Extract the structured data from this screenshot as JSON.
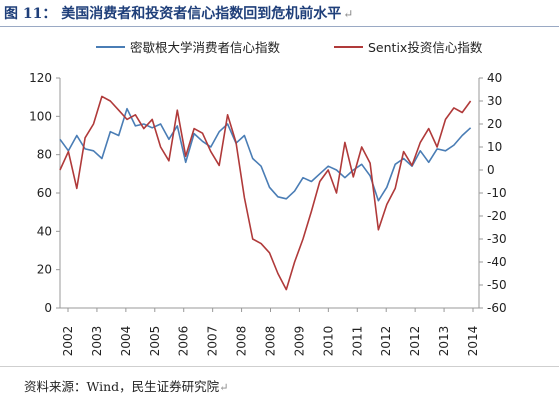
{
  "header": {
    "title": "图 11：  美国消费者和投资者信心指数回到危机前水平",
    "mark": "↵"
  },
  "footer": {
    "source": "资料来源：Wind，民生证券研究院",
    "mark": "↵"
  },
  "chart_data": {
    "type": "line",
    "title": "",
    "xlabel": "",
    "ylabel": "",
    "y2label": "",
    "ylim": [
      0,
      120
    ],
    "y2lim": [
      -60,
      40
    ],
    "yticks": [
      "0",
      "20",
      "40",
      "60",
      "80",
      "100",
      "120"
    ],
    "y2ticks": [
      "-60",
      "-50",
      "-40",
      "-30",
      "-20",
      "-10",
      "0",
      "10",
      "20",
      "30",
      "40"
    ],
    "x_ticks": [
      "2002",
      "2003",
      "2004",
      "2005",
      "2006",
      "2007",
      "2008",
      "2008",
      "2009",
      "2010",
      "2011",
      "2012",
      "2012",
      "2013",
      "2014"
    ],
    "legend_position": "top",
    "grid": false,
    "series": [
      {
        "name": "密歇根大学消费者信心指数",
        "axis": "left",
        "color": "#4a7db5",
        "x": [
          2002.0,
          2002.25,
          2002.5,
          2002.75,
          2003.0,
          2003.25,
          2003.5,
          2003.75,
          2004.0,
          2004.25,
          2004.5,
          2004.75,
          2005.0,
          2005.25,
          2005.5,
          2005.75,
          2006.0,
          2006.25,
          2006.5,
          2006.75,
          2007.0,
          2007.25,
          2007.5,
          2007.75,
          2008.0,
          2008.25,
          2008.5,
          2008.75,
          2009.0,
          2009.25,
          2009.5,
          2009.75,
          2010.0,
          2010.25,
          2010.5,
          2010.75,
          2011.0,
          2011.25,
          2011.5,
          2011.75,
          2012.0,
          2012.25,
          2012.5,
          2012.75,
          2013.0,
          2013.25,
          2013.5,
          2013.75,
          2014.0,
          2014.25
        ],
        "values": [
          88,
          82,
          90,
          83,
          82,
          78,
          92,
          90,
          104,
          95,
          96,
          94,
          96,
          88,
          95,
          76,
          91,
          87,
          84,
          92,
          96,
          86,
          90,
          78,
          74,
          63,
          58,
          57,
          61,
          68,
          66,
          70,
          74,
          72,
          68,
          72,
          75,
          69,
          56,
          63,
          75,
          78,
          74,
          82,
          76,
          83,
          82,
          85,
          90,
          94
        ]
      },
      {
        "name": "Sentix投资信心指数",
        "axis": "right",
        "color": "#b03a3a",
        "x": [
          2002.0,
          2002.25,
          2002.5,
          2002.75,
          2003.0,
          2003.25,
          2003.5,
          2003.75,
          2004.0,
          2004.25,
          2004.5,
          2004.75,
          2005.0,
          2005.25,
          2005.5,
          2005.75,
          2006.0,
          2006.25,
          2006.5,
          2006.75,
          2007.0,
          2007.25,
          2007.5,
          2007.75,
          2008.0,
          2008.25,
          2008.5,
          2008.75,
          2009.0,
          2009.25,
          2009.5,
          2009.75,
          2010.0,
          2010.25,
          2010.5,
          2010.75,
          2011.0,
          2011.25,
          2011.5,
          2011.75,
          2012.0,
          2012.25,
          2012.5,
          2012.75,
          2013.0,
          2013.25,
          2013.5,
          2013.75,
          2014.0,
          2014.25
        ],
        "values": [
          0,
          8,
          -8,
          14,
          20,
          32,
          30,
          26,
          22,
          24,
          18,
          22,
          10,
          4,
          26,
          6,
          18,
          16,
          8,
          2,
          24,
          12,
          -12,
          -30,
          -32,
          -36,
          -45,
          -52,
          -40,
          -30,
          -18,
          -5,
          0,
          -10,
          12,
          -3,
          10,
          3,
          -26,
          -15,
          -8,
          8,
          2,
          12,
          18,
          10,
          22,
          27,
          25,
          30
        ]
      }
    ]
  }
}
